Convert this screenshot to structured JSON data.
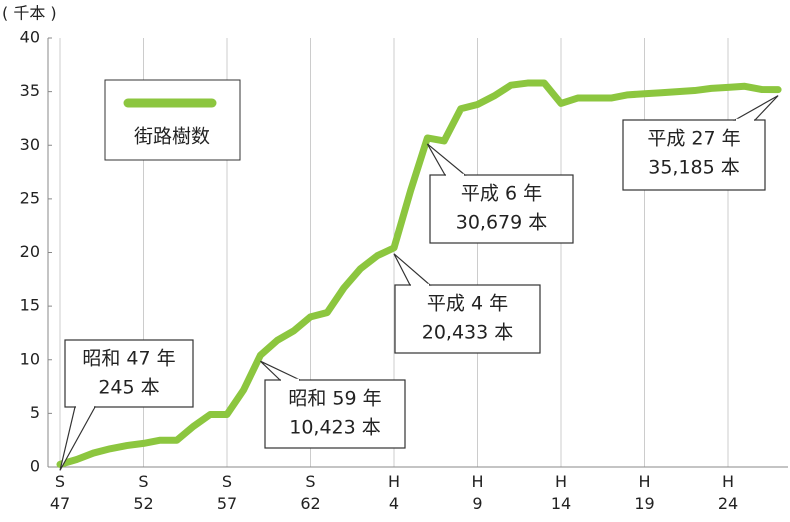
{
  "chart_data": {
    "type": "line",
    "y_unit": "( 千本 )",
    "categories": [
      "S\n47",
      null,
      null,
      null,
      null,
      "S\n52",
      null,
      null,
      null,
      null,
      "S\n57",
      null,
      null,
      null,
      null,
      "S\n62",
      null,
      null,
      null,
      null,
      "H\n4",
      null,
      null,
      null,
      null,
      "H\n9",
      null,
      null,
      null,
      null,
      "H\n14",
      null,
      null,
      null,
      null,
      "H\n19",
      null,
      null,
      null,
      null,
      "H\n24",
      null,
      null,
      null
    ],
    "series": [
      {
        "name": "街路樹数",
        "color": "#8cc63f",
        "values": [
          0.245,
          0.7,
          1.3,
          1.7,
          2.0,
          2.2,
          2.5,
          2.5,
          3.8,
          4.9,
          4.9,
          7.2,
          10.423,
          11.8,
          12.7,
          14.0,
          14.4,
          16.7,
          18.5,
          19.7,
          20.433,
          25.8,
          30.679,
          30.4,
          33.4,
          33.8,
          34.6,
          35.6,
          35.8,
          35.8,
          33.9,
          34.4,
          34.4,
          34.4,
          34.7,
          34.8,
          34.9,
          35.0,
          35.1,
          35.3,
          35.4,
          35.5,
          35.2,
          35.185
        ]
      }
    ],
    "ylim": [
      0,
      40
    ],
    "yticks": [
      0,
      5,
      10,
      15,
      20,
      25,
      30,
      35,
      40
    ],
    "grid": "x",
    "annotations": [
      [
        "昭和 47 年",
        "245 本"
      ],
      [
        "昭和 59 年",
        "10,423 本"
      ],
      [
        "平成 4 年",
        "20,433 本"
      ],
      [
        "平成 6 年",
        "30,679 本"
      ],
      [
        "平成 27 年",
        "35,185 本"
      ]
    ]
  }
}
